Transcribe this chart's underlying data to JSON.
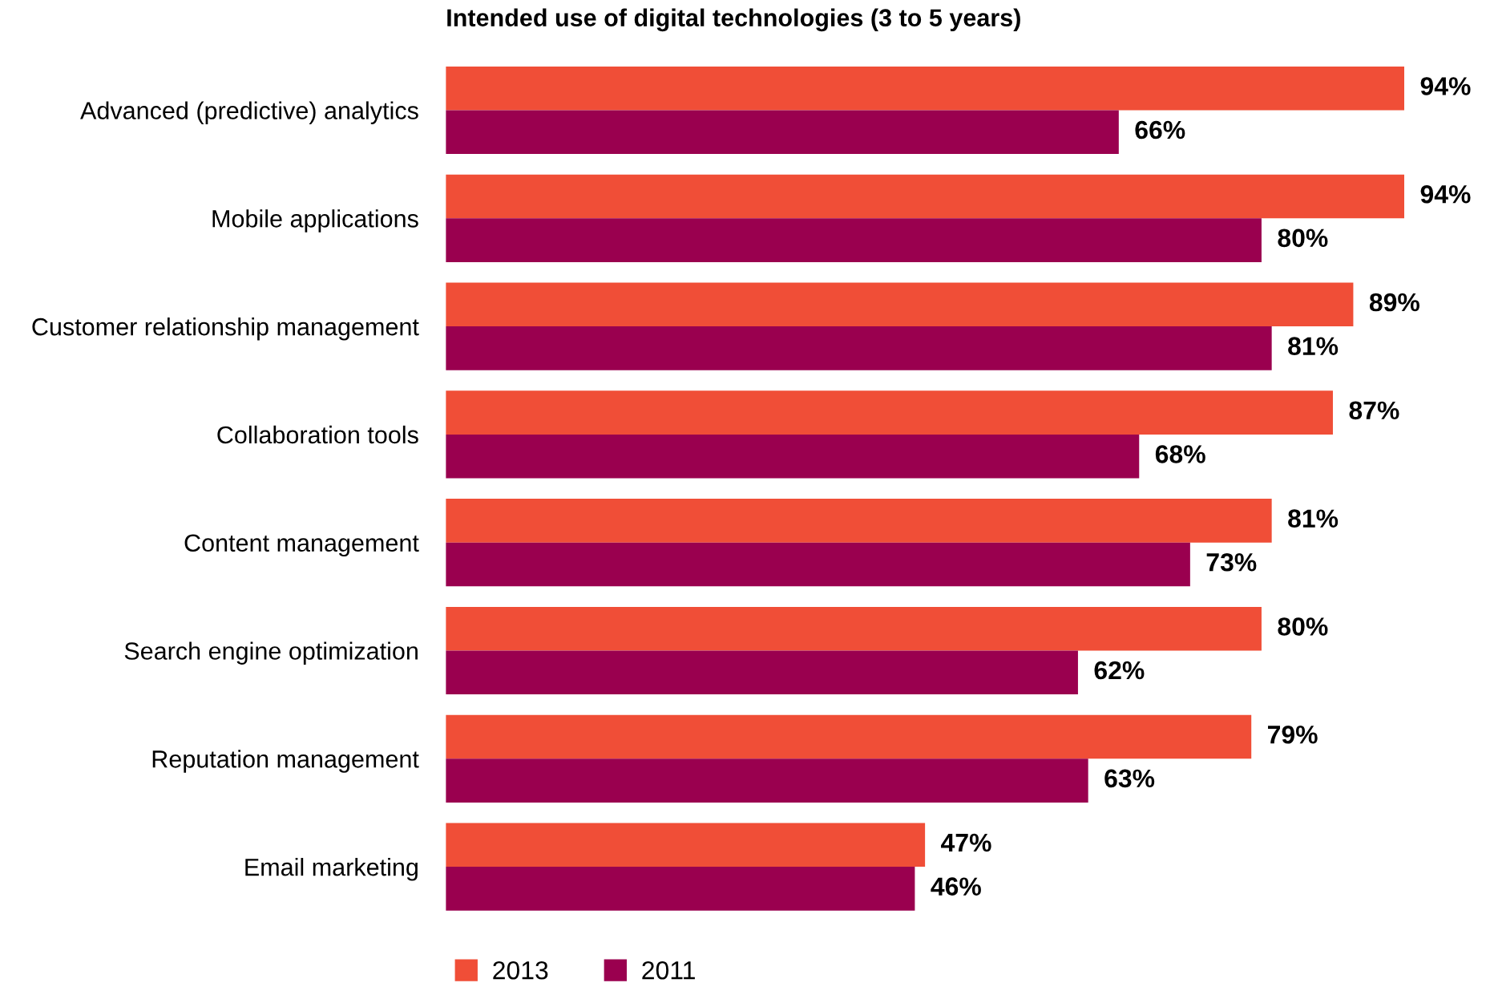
{
  "chart_data": {
    "type": "bar",
    "orientation": "horizontal",
    "title": "Intended use of digital technologies (3 to 5 years)",
    "categories": [
      "Advanced (predictive) analytics",
      "Mobile applications",
      "Customer relationship management",
      "Collaboration tools",
      "Content management",
      "Search engine optimization",
      "Reputation management",
      "Email marketing"
    ],
    "series": [
      {
        "name": "2013",
        "color": "#f04e37",
        "values": [
          94,
          94,
          89,
          87,
          81,
          80,
          79,
          47
        ],
        "value_labels": [
          "94%",
          "94%",
          "89%",
          "87%",
          "81%",
          "80%",
          "79%",
          "47%"
        ]
      },
      {
        "name": "2011",
        "color": "#9a004f",
        "values": [
          66,
          80,
          81,
          68,
          73,
          62,
          63,
          46
        ],
        "value_labels": [
          "66%",
          "80%",
          "81%",
          "68%",
          "73%",
          "62%",
          "63%",
          "46%"
        ]
      }
    ],
    "legend": "bottom",
    "tick_labels": "y",
    "grid": false
  }
}
